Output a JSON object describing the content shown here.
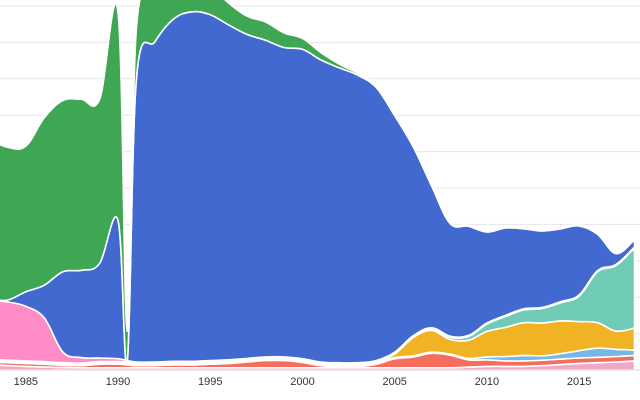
{
  "chart_data": {
    "type": "area",
    "x_ticks": [
      "1985",
      "1990",
      "1995",
      "2000",
      "2005",
      "2010",
      "2015"
    ],
    "x": [
      1983,
      1984,
      1985,
      1986,
      1987,
      1988,
      1989,
      1990,
      1990.5,
      1991,
      1992,
      1993,
      1994,
      1995,
      1996,
      1997,
      1998,
      1999,
      2000,
      2001,
      2002,
      2003,
      2004,
      2005,
      2006,
      2007,
      2008,
      2009,
      2010,
      2011,
      2012,
      2013,
      2014,
      2015,
      2016,
      2017,
      2018
    ],
    "xlim": [
      1983.6,
      2018.3
    ],
    "ylim": [
      0,
      100
    ],
    "grid": true,
    "series": [
      {
        "color": "#f0a8c8",
        "values": [
          1.5,
          1.2,
          1.0,
          0.8,
          0.7,
          0.6,
          0.6,
          0.6,
          0.6,
          0.6,
          0.6,
          0.6,
          0.6,
          0.6,
          0.6,
          0.6,
          0.6,
          0.6,
          0.6,
          0.6,
          0.6,
          0.6,
          0.6,
          0.6,
          0.6,
          0.6,
          0.6,
          0.8,
          1.0,
          1.0,
          1.0,
          1.2,
          1.5,
          1.8,
          2.0,
          2.2,
          2.5
        ]
      },
      {
        "color": "#f46d5d",
        "values": [
          0.8,
          0.8,
          0.8,
          0.8,
          0.6,
          0.6,
          1.0,
          1.0,
          0.8,
          0.6,
          0.6,
          0.8,
          0.8,
          1.0,
          1.2,
          1.6,
          2.0,
          2.0,
          1.5,
          0.6,
          0.4,
          0.4,
          1.0,
          2.5,
          3.0,
          4.0,
          3.5,
          2.0,
          1.8,
          1.5,
          1.5,
          1.5,
          1.5,
          1.5,
          1.5,
          1.5,
          1.5
        ]
      },
      {
        "color": "#76b7e8",
        "values": [
          0.3,
          0.3,
          0.3,
          0.3,
          0.3,
          0.3,
          0.3,
          0.3,
          0.3,
          0.3,
          0.3,
          0.3,
          0.3,
          0.3,
          0.3,
          0.3,
          0.3,
          0.3,
          0.3,
          0.3,
          0.3,
          0.3,
          0.3,
          0.3,
          0.3,
          0.3,
          0.3,
          0.4,
          0.8,
          1.2,
          1.5,
          1.2,
          1.5,
          2.0,
          2.5,
          2.0,
          1.5
        ]
      },
      {
        "color": "#f0b323",
        "values": [
          0.2,
          0.2,
          0.2,
          0.2,
          0.2,
          0.2,
          0.2,
          0.2,
          0.2,
          0.2,
          0.2,
          0.2,
          0.2,
          0.2,
          0.2,
          0.2,
          0.2,
          0.2,
          0.2,
          0.2,
          0.2,
          0.2,
          0.2,
          1.0,
          5.0,
          6.0,
          4.0,
          5.0,
          7.0,
          8.0,
          9.0,
          9.0,
          9.0,
          8.0,
          7.0,
          5.0,
          6.0
        ]
      },
      {
        "color": "#6fcbb5",
        "values": [
          0.2,
          0.2,
          0.2,
          0.2,
          0.2,
          0.2,
          0.2,
          0.2,
          0.2,
          0.2,
          0.2,
          0.2,
          0.2,
          0.2,
          0.2,
          0.2,
          0.2,
          0.2,
          0.2,
          0.2,
          0.2,
          0.2,
          0.2,
          0.2,
          0.2,
          0.4,
          0.6,
          1.0,
          2.0,
          3.0,
          3.5,
          4.0,
          5.0,
          7.0,
          14.0,
          18.0,
          22.0
        ]
      },
      {
        "color": "#ff8cc6",
        "values": [
          16.0,
          16.0,
          15.0,
          12.0,
          3.0,
          1.5,
          1.0,
          0.8,
          0.5,
          0.3,
          0.3,
          0.3,
          0.3,
          0.3,
          0.3,
          0.3,
          0.3,
          0.3,
          0.3,
          0.3,
          0.3,
          0.3,
          0.3,
          0.3,
          0.3,
          0.3,
          0.3,
          0.3,
          0.3,
          0.3,
          0.3,
          0.3,
          0.3,
          0.3,
          0.3,
          0.3,
          0.3
        ]
      },
      {
        "color": "#4169d0",
        "values": [
          0.5,
          0.5,
          4.0,
          9.0,
          22.0,
          24.0,
          26.0,
          38.0,
          0.0,
          78.0,
          88.0,
          94.0,
          96.0,
          95.0,
          92.0,
          89.0,
          87.0,
          85.0,
          85.0,
          83.0,
          81.0,
          79.0,
          75.0,
          65.0,
          52.0,
          39.0,
          31.0,
          30.0,
          25.0,
          24.0,
          22.0,
          21.0,
          20.0,
          19.0,
          10.0,
          3.0,
          2.0
        ]
      },
      {
        "color": "#3fa653",
        "values": [
          44.0,
          42.0,
          40.0,
          46.0,
          47.0,
          47.0,
          45.0,
          57.0,
          8.0,
          14.0,
          14.0,
          12.0,
          11.0,
          8.0,
          6.0,
          5.0,
          5.0,
          4.0,
          3.0,
          2.0,
          1.0,
          0.5,
          0.3,
          0.3,
          0.3,
          0.3,
          0.3,
          0.3,
          0.3,
          0.3,
          0.3,
          0.3,
          0.3,
          0.3,
          0.3,
          0.3,
          0.3
        ]
      }
    ]
  }
}
